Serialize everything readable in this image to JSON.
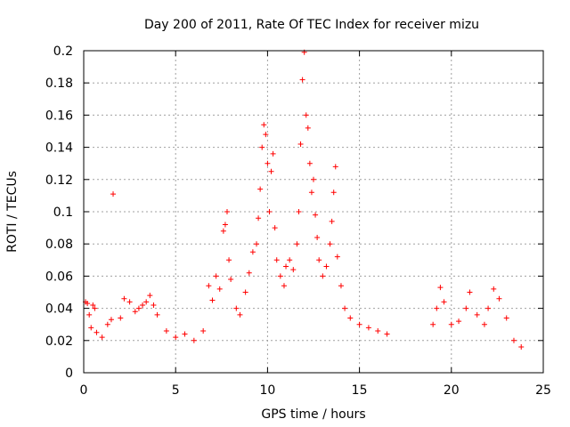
{
  "chart_data": {
    "type": "scatter",
    "title": "Day 200 of 2011, Rate Of TEC Index for receiver mizu",
    "xlabel": "GPS time / hours",
    "ylabel": "ROTI / TECUs",
    "xlim": [
      0,
      25
    ],
    "ylim": [
      0,
      0.2
    ],
    "x_ticks": [
      "0",
      "5",
      "10",
      "15",
      "20",
      "25"
    ],
    "y_ticks": [
      "0",
      "0.02",
      "0.04",
      "0.06",
      "0.08",
      "0.1",
      "0.12",
      "0.14",
      "0.16",
      "0.18",
      "0.2"
    ],
    "grid": true,
    "marker": "plus",
    "color": "#ff0000",
    "series": [
      {
        "points": [
          [
            0.1,
            0.044
          ],
          [
            0.2,
            0.043
          ],
          [
            0.3,
            0.036
          ],
          [
            0.4,
            0.028
          ],
          [
            0.5,
            0.042
          ],
          [
            0.6,
            0.04
          ],
          [
            0.7,
            0.025
          ],
          [
            1.0,
            0.022
          ],
          [
            1.3,
            0.03
          ],
          [
            1.5,
            0.033
          ],
          [
            1.6,
            0.111
          ],
          [
            2.0,
            0.034
          ],
          [
            2.2,
            0.046
          ],
          [
            2.5,
            0.044
          ],
          [
            2.8,
            0.038
          ],
          [
            3.0,
            0.04
          ],
          [
            3.2,
            0.042
          ],
          [
            3.4,
            0.044
          ],
          [
            3.6,
            0.048
          ],
          [
            3.8,
            0.042
          ],
          [
            4.0,
            0.036
          ],
          [
            4.5,
            0.026
          ],
          [
            5.0,
            0.022
          ],
          [
            5.5,
            0.024
          ],
          [
            6.0,
            0.02
          ],
          [
            6.5,
            0.026
          ],
          [
            6.8,
            0.054
          ],
          [
            7.0,
            0.045
          ],
          [
            7.2,
            0.06
          ],
          [
            7.4,
            0.052
          ],
          [
            7.6,
            0.088
          ],
          [
            7.7,
            0.092
          ],
          [
            7.8,
            0.1
          ],
          [
            7.9,
            0.07
          ],
          [
            8.0,
            0.058
          ],
          [
            8.3,
            0.04
          ],
          [
            8.5,
            0.036
          ],
          [
            8.8,
            0.05
          ],
          [
            9.0,
            0.062
          ],
          [
            9.2,
            0.075
          ],
          [
            9.4,
            0.08
          ],
          [
            9.5,
            0.096
          ],
          [
            9.6,
            0.114
          ],
          [
            9.7,
            0.14
          ],
          [
            9.8,
            0.154
          ],
          [
            9.9,
            0.148
          ],
          [
            10.0,
            0.13
          ],
          [
            10.1,
            0.1
          ],
          [
            10.2,
            0.125
          ],
          [
            10.3,
            0.136
          ],
          [
            10.4,
            0.09
          ],
          [
            10.5,
            0.07
          ],
          [
            10.7,
            0.06
          ],
          [
            10.9,
            0.054
          ],
          [
            11.0,
            0.066
          ],
          [
            11.2,
            0.07
          ],
          [
            11.4,
            0.064
          ],
          [
            11.6,
            0.08
          ],
          [
            11.7,
            0.1
          ],
          [
            11.8,
            0.142
          ],
          [
            11.9,
            0.182
          ],
          [
            12.0,
            0.199
          ],
          [
            12.1,
            0.16
          ],
          [
            12.2,
            0.152
          ],
          [
            12.3,
            0.13
          ],
          [
            12.4,
            0.112
          ],
          [
            12.5,
            0.12
          ],
          [
            12.6,
            0.098
          ],
          [
            12.7,
            0.084
          ],
          [
            12.8,
            0.07
          ],
          [
            13.0,
            0.06
          ],
          [
            13.2,
            0.066
          ],
          [
            13.4,
            0.08
          ],
          [
            13.5,
            0.094
          ],
          [
            13.6,
            0.112
          ],
          [
            13.7,
            0.128
          ],
          [
            13.8,
            0.072
          ],
          [
            14.0,
            0.054
          ],
          [
            14.2,
            0.04
          ],
          [
            14.5,
            0.034
          ],
          [
            15.0,
            0.03
          ],
          [
            15.5,
            0.028
          ],
          [
            16.0,
            0.026
          ],
          [
            16.5,
            0.024
          ],
          [
            19.0,
            0.03
          ],
          [
            19.2,
            0.04
          ],
          [
            19.4,
            0.053
          ],
          [
            19.6,
            0.044
          ],
          [
            20.0,
            0.03
          ],
          [
            20.4,
            0.032
          ],
          [
            20.8,
            0.04
          ],
          [
            21.0,
            0.05
          ],
          [
            21.4,
            0.036
          ],
          [
            21.8,
            0.03
          ],
          [
            22.0,
            0.04
          ],
          [
            22.3,
            0.052
          ],
          [
            22.6,
            0.046
          ],
          [
            23.0,
            0.034
          ],
          [
            23.4,
            0.02
          ],
          [
            23.8,
            0.016
          ]
        ]
      }
    ]
  }
}
